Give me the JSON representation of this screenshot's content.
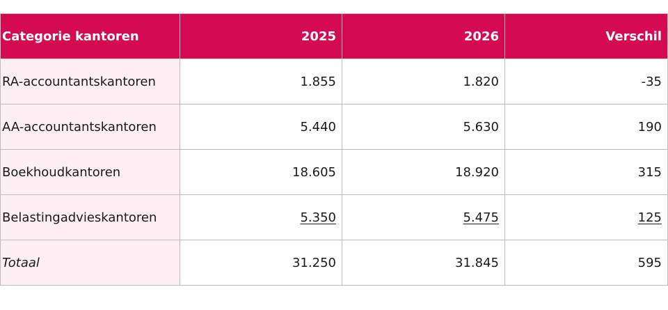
{
  "table": {
    "headers": [
      "Categorie kantoren",
      "2025",
      "2026",
      "Verschil"
    ],
    "rows": [
      {
        "label": "RA-accountantskantoren",
        "v2025": "1.855",
        "v2026": "1.820",
        "diff": "-35"
      },
      {
        "label": "AA-accountantskantoren",
        "v2025": "5.440",
        "v2026": "5.630",
        "diff": "190"
      },
      {
        "label": "Boekhoudkantoren",
        "v2025": "18.605",
        "v2026": "18.920",
        "diff": "315"
      },
      {
        "label": "Belastingadvieskantoren",
        "v2025": "5.350",
        "v2026": "5.475",
        "diff": "125"
      },
      {
        "label": "Totaal",
        "v2025": "31.250",
        "v2026": "31.845",
        "diff": "595"
      }
    ]
  },
  "colors": {
    "header_bg": "#d50b52",
    "label_bg": "#fdeff4",
    "border": "#bdbdbd"
  }
}
